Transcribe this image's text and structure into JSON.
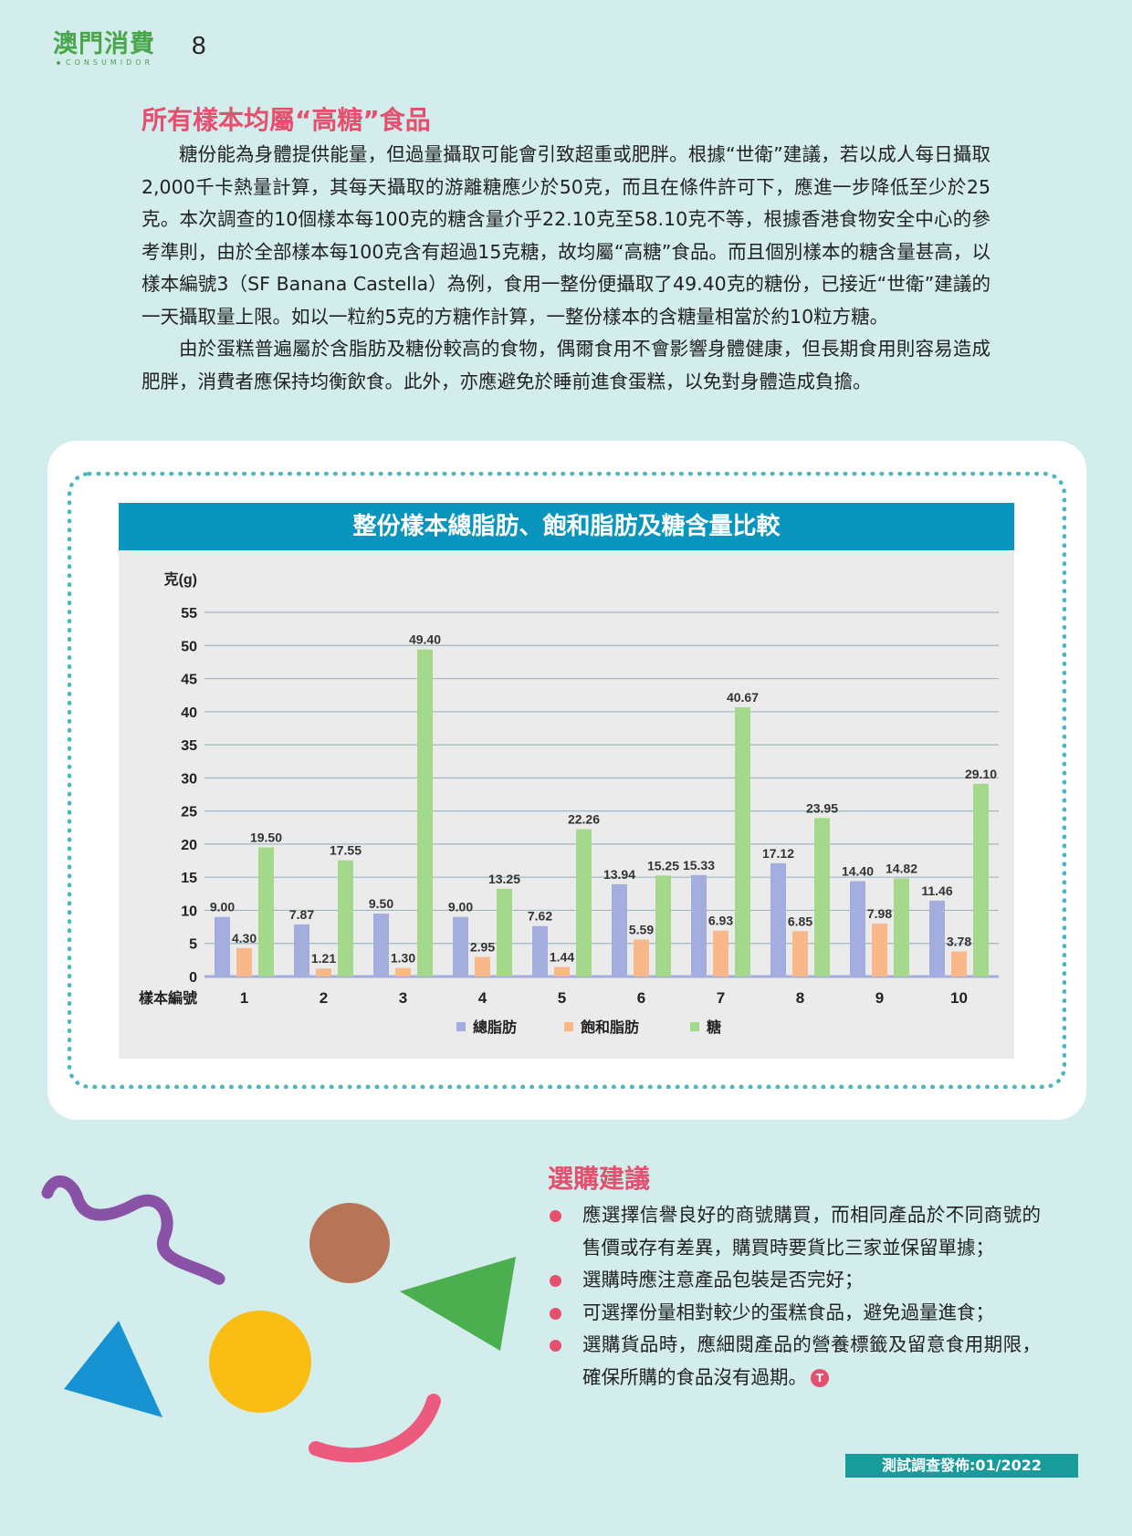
{
  "header": {
    "logo_text": "澳門消費",
    "logo_subtext": "CONSUMIDOR",
    "page_number": "8"
  },
  "section": {
    "title": "所有樣本均屬“高糖”食品",
    "paragraphs": [
      "糖份能為身體提供能量，但過量攝取可能會引致超重或肥胖。根據“世衛”建議，若以成人每日攝取2,000千卡熱量計算，其每天攝取的游離糖應少於50克，而且在條件許可下，應進一步降低至少於25克。本次調查的10個樣本每100克的糖含量介乎22.10克至58.10克不等，根據香港食物安全中心的參考準則，由於全部樣本每100克含有超過15克糖，故均屬“高糖”食品。而且個別樣本的糖含量甚高，以樣本編號3（SF Banana Castella）為例，食用一整份便攝取了49.40克的糖份，已接近“世衛”建議的一天攝取量上限。如以一粒約5克的方糖作計算，一整份樣本的含糖量相當於約10粒方糖。",
      "由於蛋糕普遍屬於含脂肪及糖份較高的食物，偶爾食用不會影響身體健康，但長期食用則容易造成肥胖，消費者應保持均衡飲食。此外，亦應避免於睡前進食蛋糕，以免對身體造成負擔。"
    ]
  },
  "chart_data": {
    "type": "bar",
    "title": "整份樣本總脂肪、飽和脂肪及糖含量比較",
    "ylabel": "克(g)",
    "xlabel": "樣本編號",
    "categories": [
      "1",
      "2",
      "3",
      "4",
      "5",
      "6",
      "7",
      "8",
      "9",
      "10"
    ],
    "ylim": [
      0,
      55
    ],
    "yticks": [
      0,
      5,
      10,
      15,
      20,
      25,
      30,
      35,
      40,
      45,
      50,
      55
    ],
    "grid": true,
    "legend_position": "bottom",
    "series": [
      {
        "name": "總脂肪",
        "color": "#a4aede",
        "values": [
          9.0,
          7.87,
          9.5,
          9.0,
          7.62,
          13.94,
          15.33,
          17.12,
          14.4,
          11.46
        ],
        "labels": [
          "9.00",
          "7.87",
          "9.50",
          "9.00",
          "7.62",
          "13.94",
          "15.33",
          "17.12",
          "14.40",
          "11.46"
        ]
      },
      {
        "name": "飽和脂肪",
        "color": "#f8b889",
        "values": [
          4.3,
          1.21,
          1.3,
          2.95,
          1.44,
          5.59,
          6.93,
          6.85,
          7.98,
          3.78
        ],
        "labels": [
          "4.30",
          "1.21",
          "1.30",
          "2.95",
          "1.44",
          "5.59",
          "6.93",
          "6.85",
          "7.98",
          "3.78"
        ]
      },
      {
        "name": "糖",
        "color": "#a4d88a",
        "values": [
          19.5,
          17.55,
          49.4,
          13.25,
          22.26,
          15.25,
          40.67,
          23.95,
          14.82,
          29.1
        ],
        "labels": [
          "19.50",
          "17.55",
          "49.40",
          "13.25",
          "22.26",
          "15.25",
          "40.67",
          "23.95",
          "14.82",
          "29.10"
        ]
      }
    ]
  },
  "advice": {
    "title": "選購建議",
    "items": [
      "應選擇信譽良好的商號購買，而相同產品於不同商號的售價或存有差異，購買時要貨比三家並保留單據；",
      "選購時應注意產品包裝是否完好；",
      "可選擇份量相對較少的蛋糕食品，避免過量進食；",
      "選購貨品時，應細閱產品的營養標籤及留意食用期限，確保所購的食品沒有過期。"
    ],
    "end_mark": "T"
  },
  "footer": {
    "release_label": "測試調查發佈:01/2022"
  },
  "colors": {
    "background": "#d3ecec",
    "accent_pink": "#e4506e",
    "logo_green": "#4aa64a",
    "chart_header": "#0a95bf",
    "footer_teal": "#179c9b"
  }
}
